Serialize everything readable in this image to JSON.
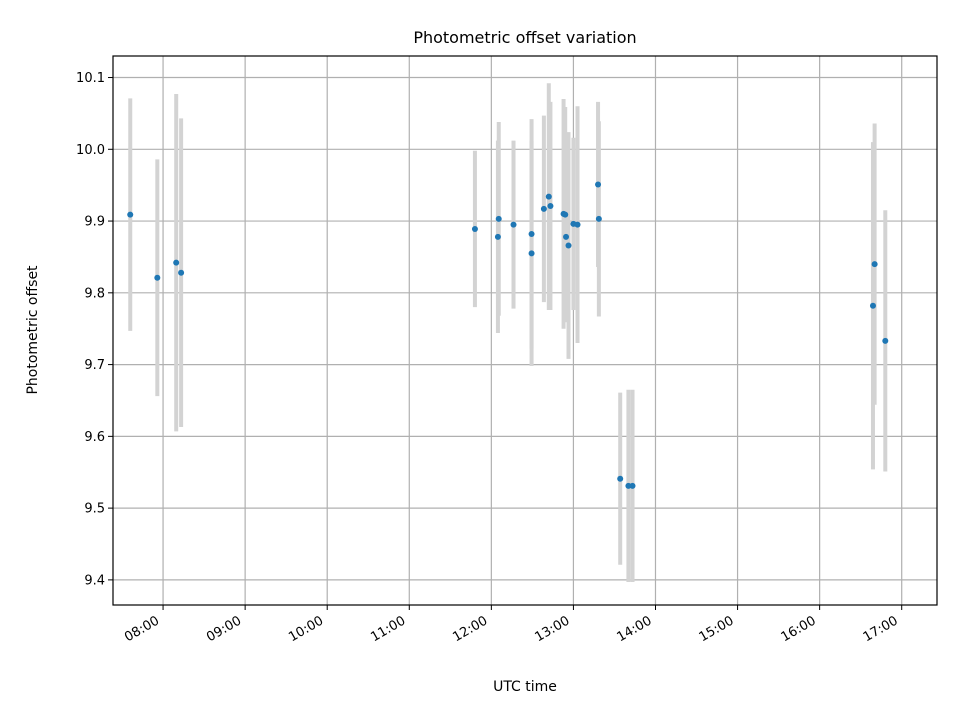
{
  "chart_data": {
    "type": "scatter",
    "title": "Photometric offset variation",
    "xlabel": "UTC time",
    "ylabel": "Photometric offset",
    "x_tick_labels": [
      "08:00",
      "09:00",
      "10:00",
      "11:00",
      "12:00",
      "13:00",
      "14:00",
      "15:00",
      "16:00",
      "17:00"
    ],
    "x_tick_hours": [
      8,
      9,
      10,
      11,
      12,
      13,
      14,
      15,
      16,
      17
    ],
    "y_ticks": [
      9.4,
      9.5,
      9.6,
      9.7,
      9.8,
      9.9,
      10.0,
      10.1
    ],
    "y_tick_labels": [
      "9.4",
      "9.5",
      "9.6",
      "9.7",
      "9.8",
      "9.9",
      "10.0",
      "10.1"
    ],
    "xlim_hours": [
      7.39,
      17.43
    ],
    "ylim": [
      9.365,
      10.13
    ],
    "grid": true,
    "marker_color": "#1f77b4",
    "errorbar_color": "#d3d3d3",
    "points": [
      {
        "time": "07:36",
        "hour": 7.6,
        "y": 9.909,
        "err": 0.162
      },
      {
        "time": "07:56",
        "hour": 7.93,
        "y": 9.821,
        "err": 0.165
      },
      {
        "time": "08:09",
        "hour": 8.16,
        "y": 9.842,
        "err": 0.235
      },
      {
        "time": "08:13",
        "hour": 8.22,
        "y": 9.828,
        "err": 0.215
      },
      {
        "time": "11:48",
        "hour": 11.8,
        "y": 9.889,
        "err": 0.109
      },
      {
        "time": "12:05",
        "hour": 12.08,
        "y": 9.878,
        "err": 0.134
      },
      {
        "time": "12:05",
        "hour": 12.09,
        "y": 9.903,
        "err": 0.135
      },
      {
        "time": "12:16",
        "hour": 12.27,
        "y": 9.895,
        "err": 0.117
      },
      {
        "time": "12:29",
        "hour": 12.49,
        "y": 9.882,
        "err": 0.16
      },
      {
        "time": "12:29",
        "hour": 12.49,
        "y": 9.855,
        "err": 0.157
      },
      {
        "time": "12:38",
        "hour": 12.64,
        "y": 9.917,
        "err": 0.13
      },
      {
        "time": "12:42",
        "hour": 12.7,
        "y": 9.934,
        "err": 0.158
      },
      {
        "time": "12:43",
        "hour": 12.72,
        "y": 9.921,
        "err": 0.145
      },
      {
        "time": "12:53",
        "hour": 12.88,
        "y": 9.91,
        "err": 0.16
      },
      {
        "time": "12:54",
        "hour": 12.9,
        "y": 9.909,
        "err": 0.15
      },
      {
        "time": "12:55",
        "hour": 12.91,
        "y": 9.878,
        "err": 0.113
      },
      {
        "time": "12:56",
        "hour": 12.94,
        "y": 9.866,
        "err": 0.158
      },
      {
        "time": "13:00",
        "hour": 13.0,
        "y": 9.896,
        "err": 0.12
      },
      {
        "time": "13:03",
        "hour": 13.05,
        "y": 9.895,
        "err": 0.165
      },
      {
        "time": "13:18",
        "hour": 13.3,
        "y": 9.951,
        "err": 0.115
      },
      {
        "time": "13:19",
        "hour": 13.31,
        "y": 9.903,
        "err": 0.136
      },
      {
        "time": "13:34",
        "hour": 13.57,
        "y": 9.541,
        "err": 0.12
      },
      {
        "time": "13:40",
        "hour": 13.67,
        "y": 9.531,
        "err": 0.134
      },
      {
        "time": "13:42",
        "hour": 13.72,
        "y": 9.531,
        "err": 0.134
      },
      {
        "time": "16:39",
        "hour": 16.65,
        "y": 9.782,
        "err": 0.228
      },
      {
        "time": "16:40",
        "hour": 16.67,
        "y": 9.84,
        "err": 0.196
      },
      {
        "time": "16:48",
        "hour": 16.8,
        "y": 9.733,
        "err": 0.182
      }
    ]
  }
}
